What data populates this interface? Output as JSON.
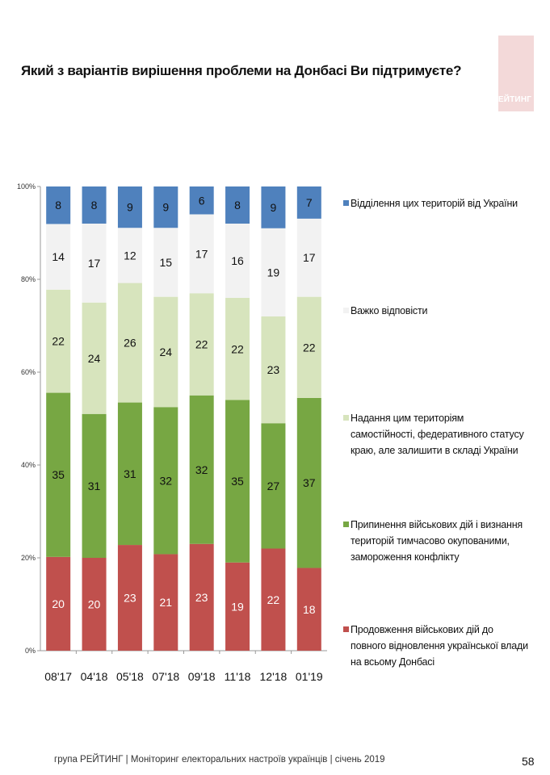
{
  "title": "Який з варіантів вирішення проблеми на Донбасі Ви підтримуєте?",
  "logo_text": "РЕЙТИНГ",
  "footer": "група РЕЙТИНГ | Моніторинг електоральних настроїв українців | січень 2019",
  "page_number": "58",
  "chart_data": {
    "type": "bar",
    "stacked": true,
    "percent": true,
    "categories": [
      "08'17",
      "04'18",
      "05'18",
      "07'18",
      "09'18",
      "11'18",
      "12'18",
      "01'19"
    ],
    "ylim": [
      0,
      100
    ],
    "yticks": [
      "0%",
      "20%",
      "40%",
      "60%",
      "80%",
      "100%"
    ],
    "series": [
      {
        "name": "Продовження військових дій до повного відновлення української влади на всьому Донбасі",
        "color": "#c0504d",
        "label_color": "#ffffff",
        "values": [
          20,
          20,
          23,
          21,
          23,
          19,
          22,
          18
        ]
      },
      {
        "name": "Припинення військових дій і визнання територій тимчасово окупованими, замороження конфлікту",
        "color": "#77a743",
        "label_color": "#111111",
        "values": [
          35,
          31,
          31,
          32,
          32,
          35,
          27,
          37
        ]
      },
      {
        "name": "Надання цим територіям самостійності, федеративного статусу краю, але залишити в складі України",
        "color": "#d7e4bd",
        "label_color": "#111111",
        "values": [
          22,
          24,
          26,
          24,
          22,
          22,
          23,
          22
        ]
      },
      {
        "name": "Важко відповісти",
        "color": "#f2f2f2",
        "label_color": "#111111",
        "values": [
          14,
          17,
          12,
          15,
          17,
          16,
          19,
          17
        ]
      },
      {
        "name": "Відділення цих територій від України",
        "color": "#4f81bd",
        "label_color": "#111111",
        "values": [
          8,
          8,
          9,
          9,
          6,
          8,
          9,
          7
        ]
      }
    ],
    "legend_position": "right",
    "grid": false
  }
}
